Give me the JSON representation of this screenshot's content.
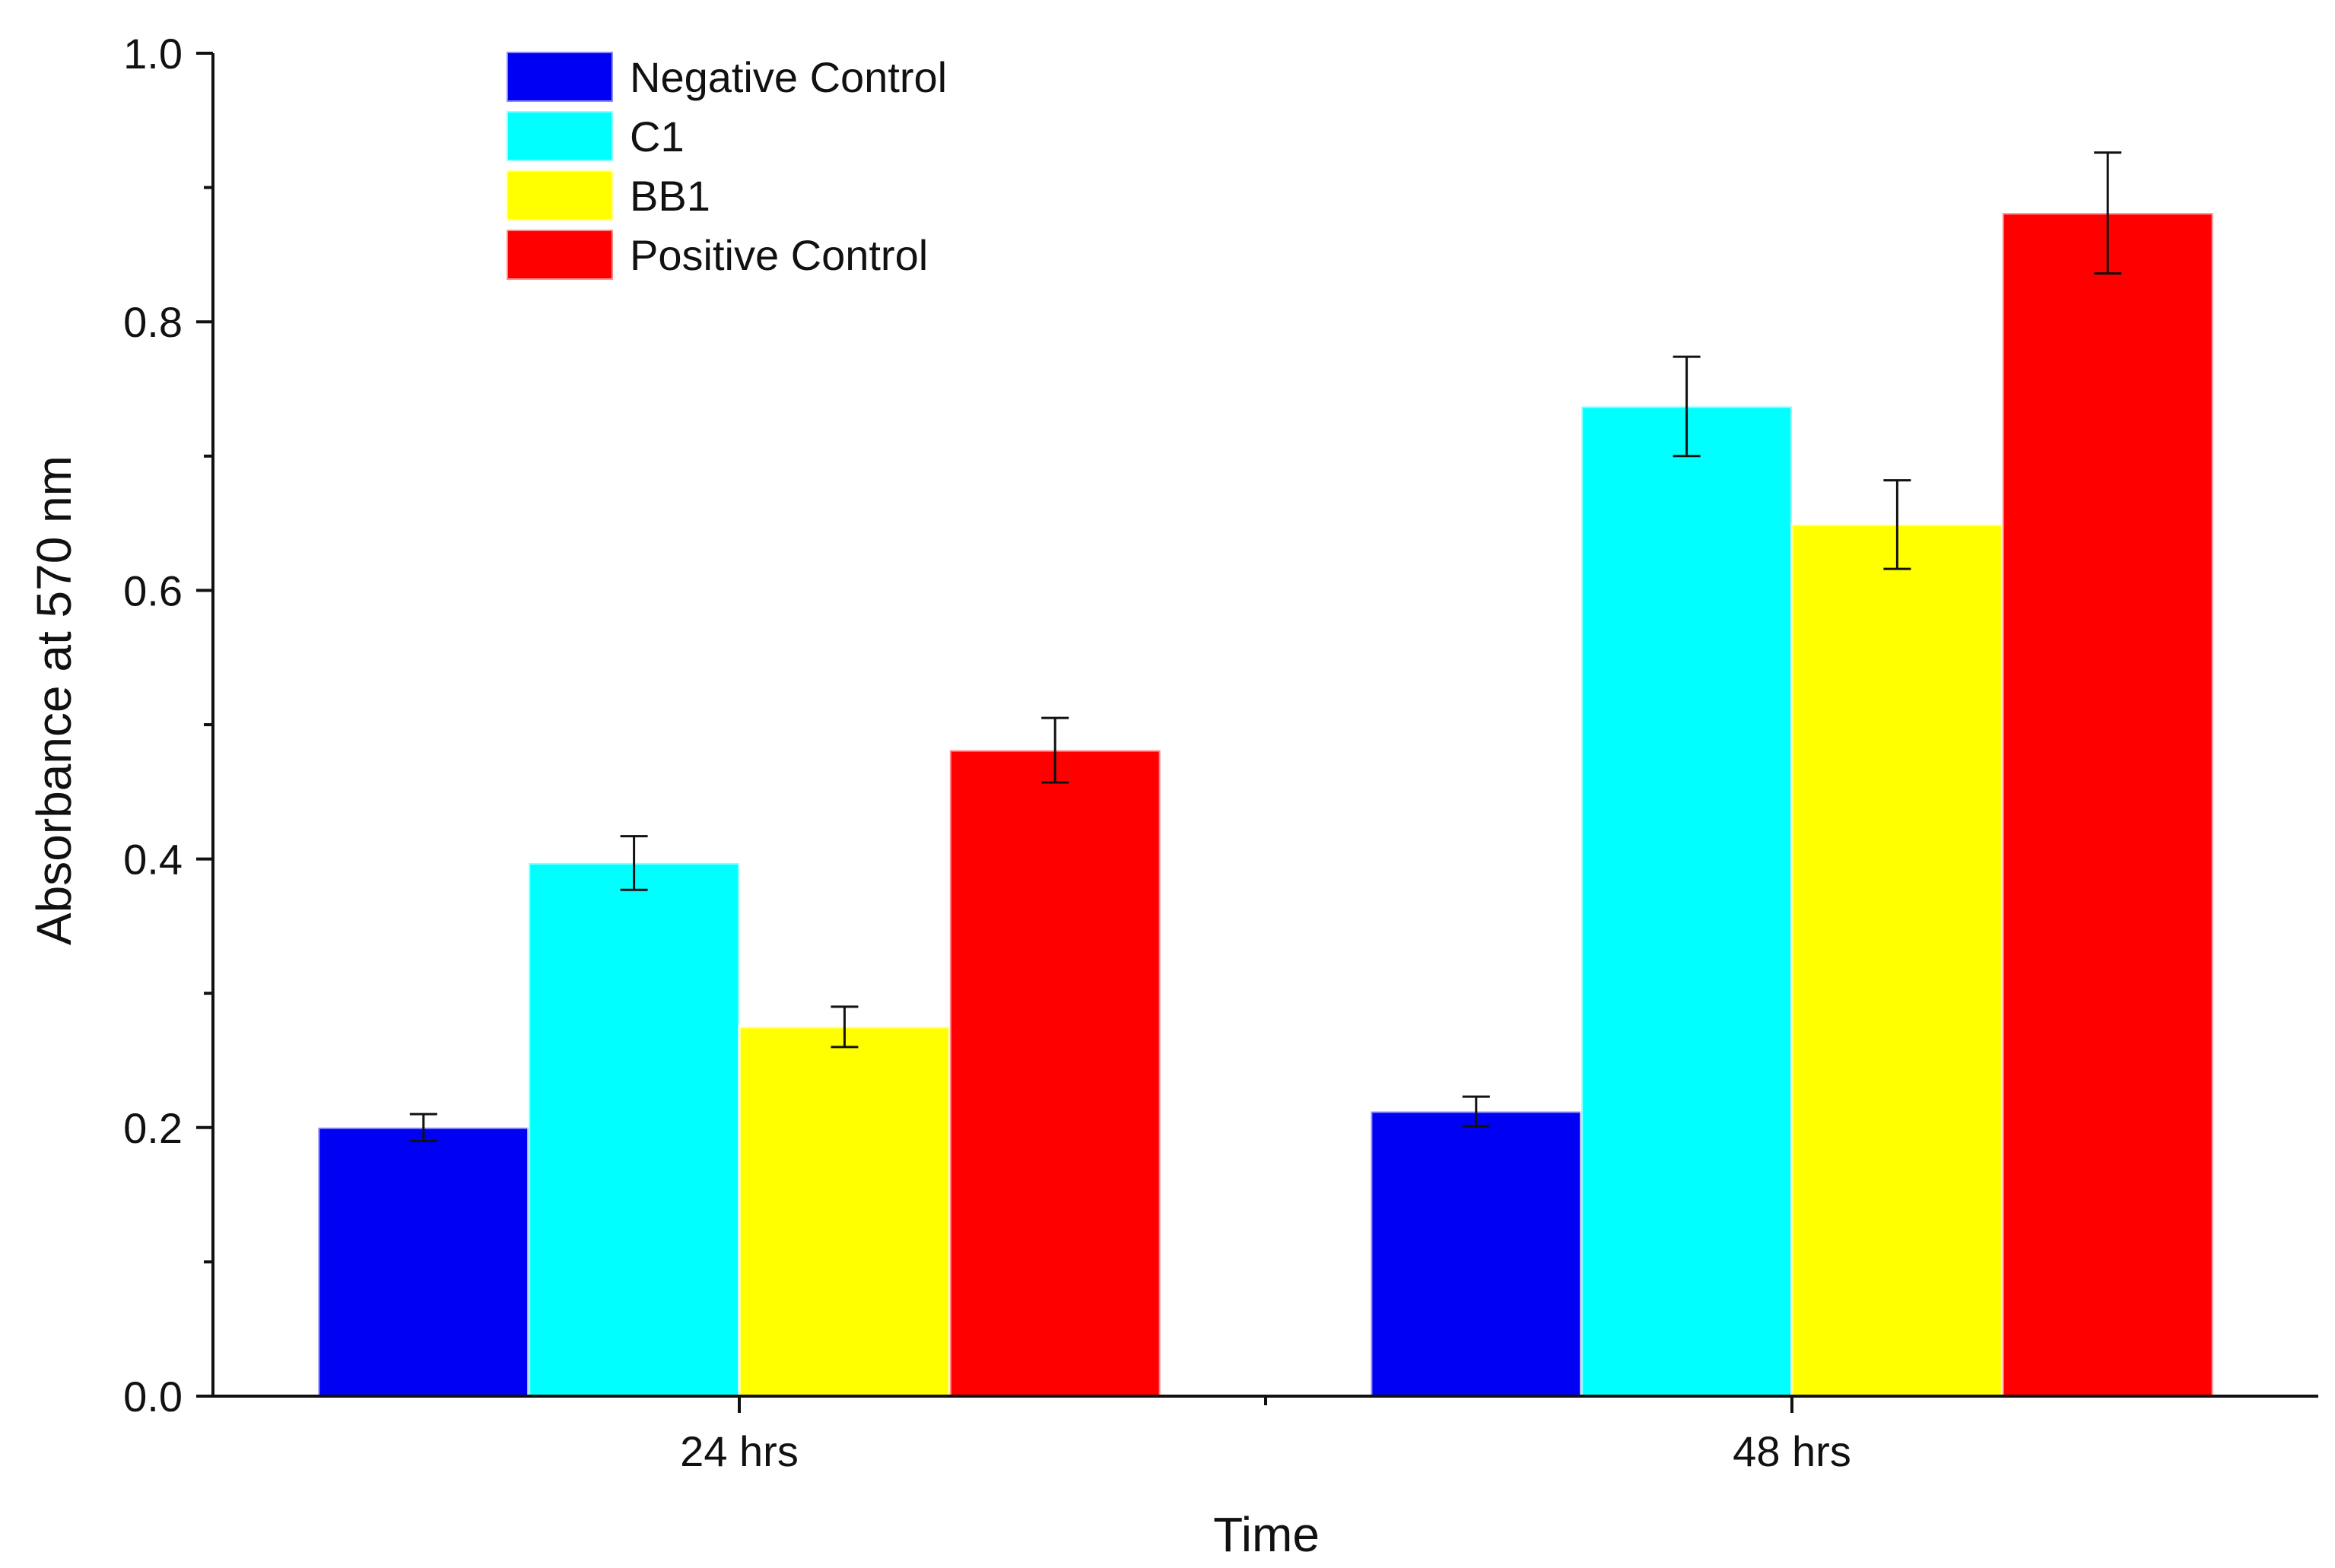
{
  "chart_data": {
    "type": "bar",
    "xlabel": "Time",
    "ylabel": "Absorbance at 570 nm",
    "categories": [
      "24 hrs",
      "48 hrs"
    ],
    "ylim": [
      0,
      1.0
    ],
    "yticks": [
      "0.0",
      "0.2",
      "0.4",
      "0.6",
      "0.8",
      "1.0"
    ],
    "grid": false,
    "legend_position": "top-left",
    "series": [
      {
        "name": "Negative Control",
        "color": "#0000f2",
        "values": [
          0.2,
          0.212
        ],
        "errors": [
          0.01,
          0.011
        ]
      },
      {
        "name": "C1",
        "color": "#00ffff",
        "values": [
          0.397,
          0.737
        ],
        "errors": [
          0.02,
          0.037
        ]
      },
      {
        "name": "BB1",
        "color": "#ffff00",
        "values": [
          0.275,
          0.649
        ],
        "errors": [
          0.015,
          0.033
        ]
      },
      {
        "name": "Positive Control",
        "color": "#ff0000",
        "values": [
          0.481,
          0.881
        ],
        "errors": [
          0.024,
          0.045
        ]
      }
    ]
  }
}
